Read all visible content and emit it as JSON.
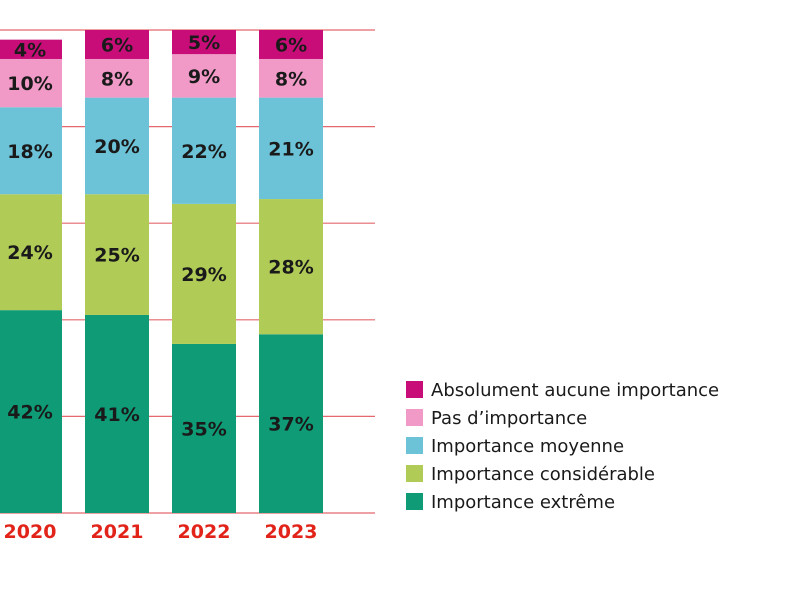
{
  "chart_data": {
    "type": "bar",
    "stacked": true,
    "normalized": true,
    "categories": [
      "2020",
      "2021",
      "2022",
      "2023"
    ],
    "series": [
      {
        "name": "Importance extrême",
        "color": "#0e9b76",
        "values": [
          42,
          41,
          35,
          37
        ]
      },
      {
        "name": "Importance considérable",
        "color": "#b0cc57",
        "values": [
          24,
          25,
          29,
          28
        ]
      },
      {
        "name": "Importance moyenne",
        "color": "#6cc3d7",
        "values": [
          18,
          20,
          22,
          21
        ]
      },
      {
        "name": "Pas d’importance",
        "color": "#f199c7",
        "values": [
          10,
          8,
          9,
          8
        ]
      },
      {
        "name": "Absolument aucune importance",
        "color": "#c90d78",
        "values": [
          4,
          6,
          5,
          6
        ]
      }
    ],
    "legend_order": [
      "Absolument aucune importance",
      "Pas d’importance",
      "Importance moyenne",
      "Importance considérable",
      "Importance extrême"
    ],
    "legend_position": "right",
    "grid": true,
    "grid_color": "#e4686e",
    "tick_color": "#e2231a",
    "value_suffix": "%"
  }
}
